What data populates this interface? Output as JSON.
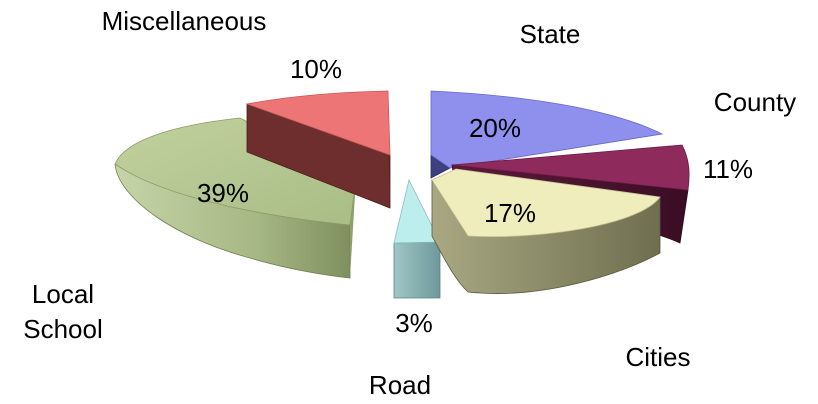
{
  "chart_data": {
    "type": "pie",
    "style": "3d-exploded",
    "categories": [
      "State",
      "County",
      "Cities",
      "Road",
      "Local School",
      "Miscellaneous"
    ],
    "values": [
      20,
      11,
      17,
      3,
      39,
      10
    ],
    "data_labels": [
      "20%",
      "11%",
      "17%",
      "3%",
      "39%",
      "10%"
    ],
    "category_labels": {
      "State": "State",
      "County": "County",
      "Cities": "Cities",
      "Road": "Road",
      "Local School": [
        "Local",
        "School"
      ],
      "Miscellaneous": "Miscellaneous"
    },
    "colors": {
      "State": "#8f90ee",
      "County": "#8e2a5c",
      "Cities": "#efedbb",
      "Road": "#bdeeee",
      "Local School": "#b3c690",
      "Miscellaneous": "#ee7575"
    },
    "side_colors": {
      "State": "#3e3f80",
      "County": "#4b1230",
      "Cities": "#8e8d68",
      "Road": "#79a9aa",
      "Local School": "#98a878",
      "Miscellaneous": "#6e2e2e"
    },
    "title": "",
    "legend": "none"
  }
}
